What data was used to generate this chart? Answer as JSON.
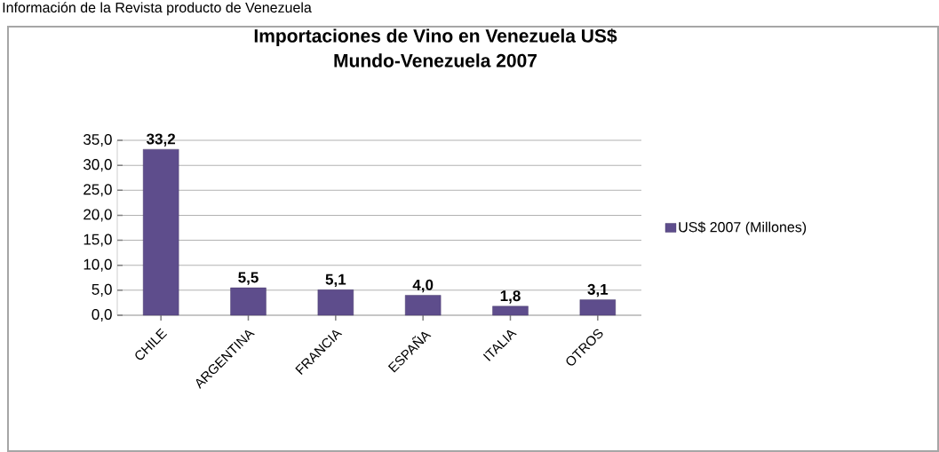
{
  "chart_data": {
    "type": "bar",
    "title": "Importaciones de Vino en Venezuela US$",
    "subtitle": "Mundo-Venezuela 2007",
    "annotations": [
      "Información de la Revista producto de Venezuela"
    ],
    "categories": [
      "CHILE",
      "ARGENTINA",
      "FRANCIA",
      "ESPAÑA",
      "ITALIA",
      "OTROS"
    ],
    "series": [
      {
        "name": "US$ 2007 (Millones)",
        "color": "#5e4d8c",
        "values": [
          33.2,
          5.5,
          5.1,
          4.0,
          1.8,
          3.1
        ],
        "value_labels": [
          "33,2",
          "5,5",
          "5,1",
          "4,0",
          "1,8",
          "3,1"
        ]
      }
    ],
    "ylim": [
      0,
      35
    ],
    "yticks": [
      {
        "value": 0,
        "label": "0,0"
      },
      {
        "value": 5,
        "label": "5,0"
      },
      {
        "value": 10,
        "label": "10,0"
      },
      {
        "value": 15,
        "label": "15,0"
      },
      {
        "value": 20,
        "label": "20,0"
      },
      {
        "value": 25,
        "label": "25,0"
      },
      {
        "value": 30,
        "label": "30,0"
      },
      {
        "value": 35,
        "label": "35,0"
      }
    ],
    "grid": "y",
    "legend": "right"
  }
}
